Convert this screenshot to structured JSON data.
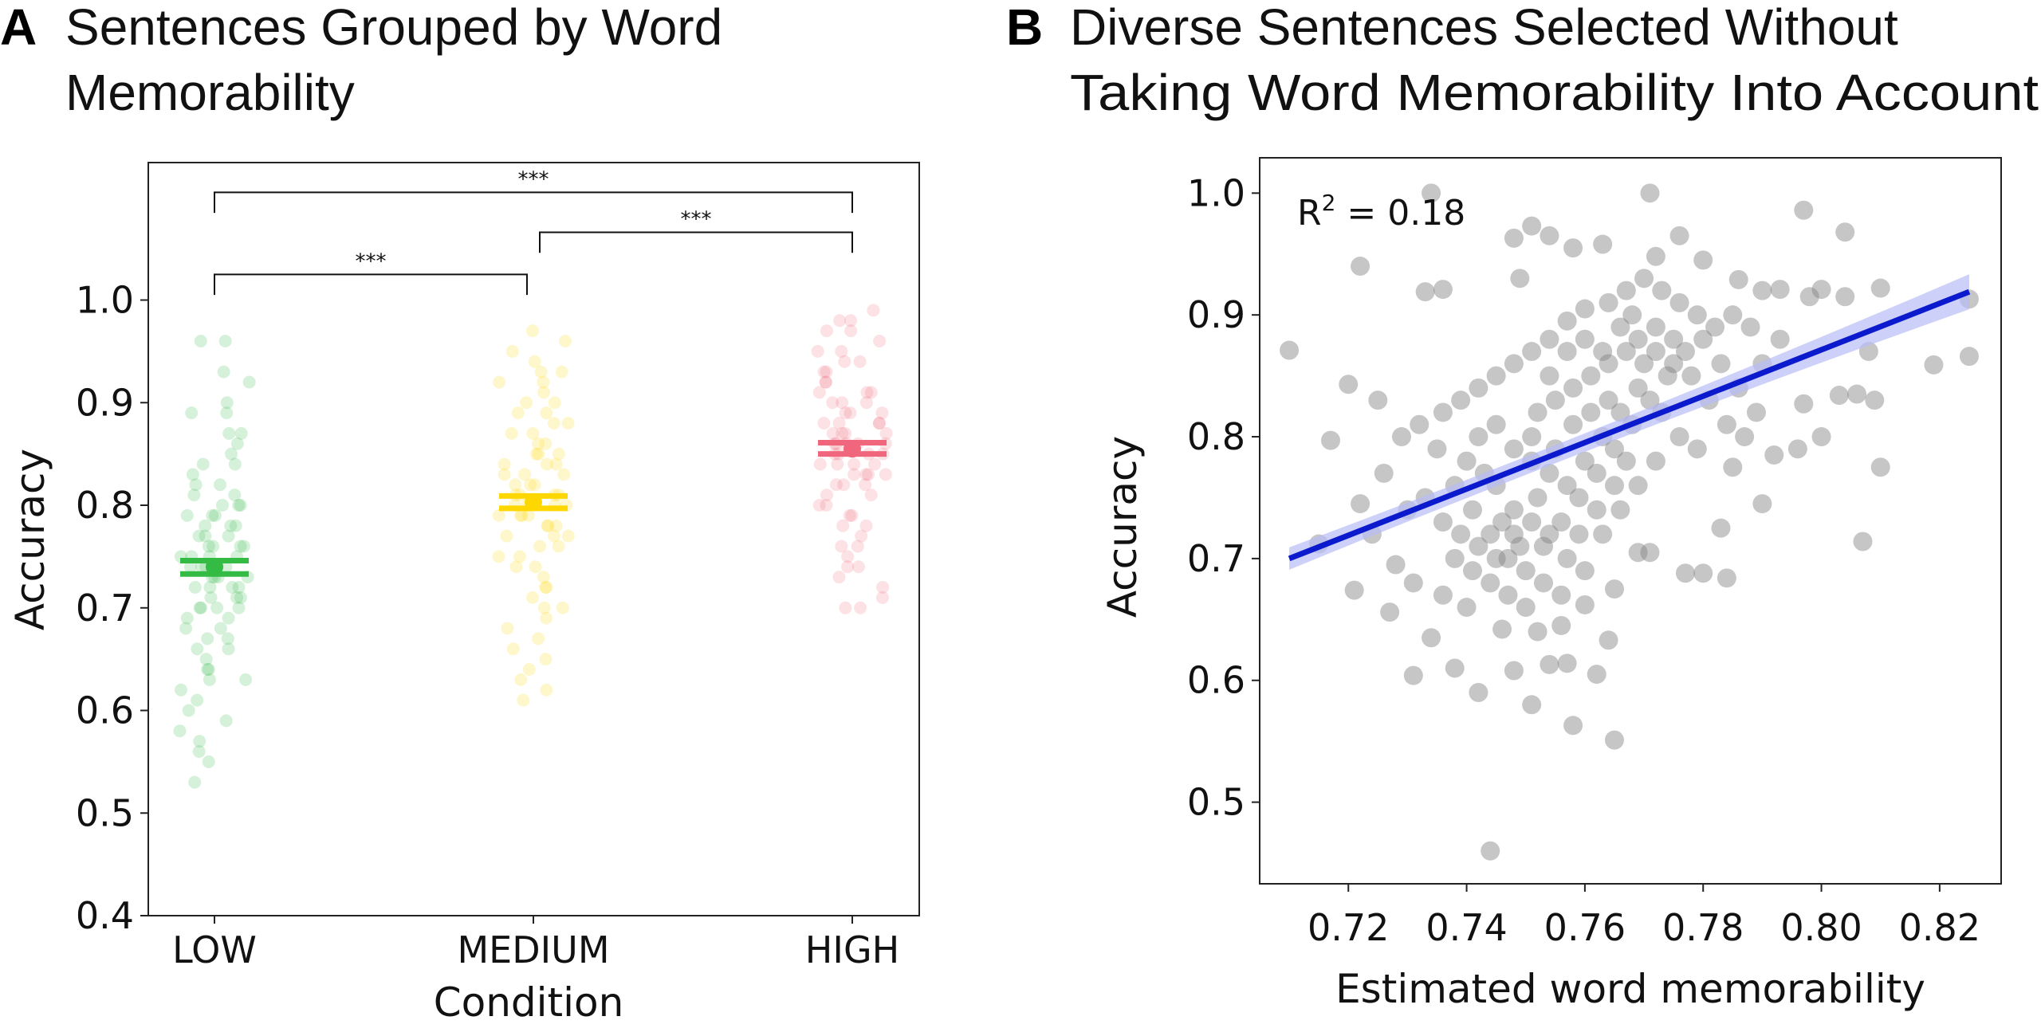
{
  "chart_data": [
    {
      "type": "scatter",
      "subtype": "strip",
      "panel_letter": "A",
      "title": "Sentences Grouped by Word Memorability",
      "title_lines": [
        "Sentences Grouped by Word",
        "Memorability"
      ],
      "xlabel": "Condition",
      "ylabel": "Accuracy",
      "categories": [
        "LOW",
        "MEDIUM",
        "HIGH"
      ],
      "yticks": [
        "0.4",
        "0.5",
        "0.6",
        "0.7",
        "0.8",
        "0.9",
        "1.0"
      ],
      "ylim": [
        0.4,
        1.134
      ],
      "grid": false,
      "colors": {
        "LOW": "#33bb44",
        "MEDIUM": "#ffd700",
        "HIGH": "#f0677d"
      },
      "means": [
        {
          "category": "LOW",
          "mean": 0.74,
          "ci": [
            0.733,
            0.746
          ]
        },
        {
          "category": "MEDIUM",
          "mean": 0.803,
          "ci": [
            0.797,
            0.809
          ]
        },
        {
          "category": "HIGH",
          "mean": 0.855,
          "ci": [
            0.85,
            0.861
          ]
        }
      ],
      "significance": [
        {
          "from": "LOW",
          "to": "MEDIUM",
          "label": "***",
          "y": 1.025
        },
        {
          "from": "MEDIUM",
          "to": "HIGH",
          "label": "***",
          "y": 1.066
        },
        {
          "from": "LOW",
          "to": "HIGH",
          "label": "***",
          "y": 1.105
        }
      ],
      "points": {
        "LOW": [
          0.96,
          0.96,
          0.93,
          0.92,
          0.9,
          0.89,
          0.89,
          0.87,
          0.87,
          0.86,
          0.85,
          0.84,
          0.84,
          0.83,
          0.82,
          0.82,
          0.81,
          0.81,
          0.8,
          0.8,
          0.79,
          0.79,
          0.78,
          0.78,
          0.77,
          0.77,
          0.76,
          0.76,
          0.76,
          0.75,
          0.75,
          0.75,
          0.74,
          0.74,
          0.74,
          0.73,
          0.73,
          0.73,
          0.72,
          0.72,
          0.72,
          0.71,
          0.71,
          0.7,
          0.7,
          0.7,
          0.69,
          0.69,
          0.68,
          0.68,
          0.67,
          0.67,
          0.66,
          0.66,
          0.65,
          0.64,
          0.64,
          0.63,
          0.63,
          0.62,
          0.61,
          0.6,
          0.59,
          0.58,
          0.57,
          0.56,
          0.55,
          0.53,
          0.78,
          0.76,
          0.74,
          0.72,
          0.8,
          0.77,
          0.75,
          0.73,
          0.71,
          0.79,
          0.74,
          0.7
        ],
        "MEDIUM": [
          0.97,
          0.96,
          0.95,
          0.94,
          0.93,
          0.93,
          0.92,
          0.92,
          0.91,
          0.9,
          0.9,
          0.89,
          0.89,
          0.88,
          0.88,
          0.87,
          0.87,
          0.86,
          0.86,
          0.85,
          0.85,
          0.84,
          0.84,
          0.83,
          0.83,
          0.82,
          0.82,
          0.81,
          0.81,
          0.81,
          0.8,
          0.8,
          0.8,
          0.79,
          0.79,
          0.79,
          0.78,
          0.78,
          0.77,
          0.77,
          0.76,
          0.76,
          0.75,
          0.75,
          0.74,
          0.74,
          0.73,
          0.72,
          0.72,
          0.71,
          0.7,
          0.7,
          0.69,
          0.68,
          0.67,
          0.66,
          0.65,
          0.64,
          0.63,
          0.62,
          0.61,
          0.83,
          0.81,
          0.79,
          0.77,
          0.85,
          0.8,
          0.78,
          0.82,
          0.84
        ],
        "HIGH": [
          0.99,
          0.98,
          0.98,
          0.97,
          0.97,
          0.96,
          0.95,
          0.95,
          0.94,
          0.94,
          0.93,
          0.93,
          0.92,
          0.92,
          0.91,
          0.91,
          0.9,
          0.9,
          0.9,
          0.89,
          0.89,
          0.88,
          0.88,
          0.88,
          0.87,
          0.87,
          0.87,
          0.86,
          0.86,
          0.86,
          0.85,
          0.85,
          0.85,
          0.84,
          0.84,
          0.84,
          0.83,
          0.83,
          0.83,
          0.82,
          0.82,
          0.81,
          0.81,
          0.8,
          0.8,
          0.79,
          0.79,
          0.78,
          0.78,
          0.77,
          0.76,
          0.76,
          0.75,
          0.74,
          0.74,
          0.73,
          0.72,
          0.71,
          0.7,
          0.7,
          0.88,
          0.86,
          0.84,
          0.89,
          0.87,
          0.85,
          0.83,
          0.91,
          0.86,
          0.82
        ]
      }
    },
    {
      "type": "scatter",
      "panel_letter": "B",
      "title": "Diverse Sentences Selected Without Taking Word Memorability Into Account",
      "title_lines": [
        "Diverse Sentences Selected Without",
        "Taking Word Memorability Into Account"
      ],
      "xlabel": "Estimated word memorability",
      "ylabel": "Accuracy",
      "xticks": [
        "0.72",
        "0.74",
        "0.76",
        "0.78",
        "0.80",
        "0.82"
      ],
      "yticks": [
        "0.5",
        "0.6",
        "0.7",
        "0.8",
        "0.9",
        "1.0"
      ],
      "xlim": [
        0.705,
        0.8304
      ],
      "ylim": [
        0.433,
        1.029
      ],
      "grid": false,
      "annotation": {
        "prefix": "R",
        "superscript": "2",
        "text": " = 0.18"
      },
      "point_color": "#808080",
      "regression": {
        "color": "#0a1acc",
        "ci_color": "#b8bcf5",
        "x": [
          0.71,
          0.825
        ],
        "y": [
          0.7,
          0.919
        ]
      },
      "points": [
        [
          0.71,
          0.871
        ],
        [
          0.722,
          0.94
        ],
        [
          0.734,
          1.0
        ],
        [
          0.771,
          1.0
        ],
        [
          0.744,
          0.46
        ],
        [
          0.765,
          0.551
        ],
        [
          0.758,
          0.563
        ],
        [
          0.797,
          0.986
        ],
        [
          0.804,
          0.968
        ],
        [
          0.819,
          0.859
        ],
        [
          0.825,
          0.866
        ],
        [
          0.825,
          0.913
        ],
        [
          0.807,
          0.714
        ],
        [
          0.81,
          0.775
        ],
        [
          0.715,
          0.712
        ],
        [
          0.717,
          0.797
        ],
        [
          0.72,
          0.843
        ],
        [
          0.725,
          0.83
        ],
        [
          0.721,
          0.674
        ],
        [
          0.727,
          0.656
        ],
        [
          0.731,
          0.604
        ],
        [
          0.734,
          0.635
        ],
        [
          0.738,
          0.61
        ],
        [
          0.742,
          0.59
        ],
        [
          0.748,
          0.608
        ],
        [
          0.751,
          0.58
        ],
        [
          0.754,
          0.613
        ],
        [
          0.762,
          0.605
        ],
        [
          0.76,
          0.662
        ],
        [
          0.756,
          0.645
        ],
        [
          0.733,
          0.919
        ],
        [
          0.736,
          0.921
        ],
        [
          0.749,
          0.93
        ],
        [
          0.751,
          0.973
        ],
        [
          0.754,
          0.965
        ],
        [
          0.748,
          0.963
        ],
        [
          0.758,
          0.955
        ],
        [
          0.763,
          0.958
        ],
        [
          0.772,
          0.948
        ],
        [
          0.776,
          0.965
        ],
        [
          0.78,
          0.945
        ],
        [
          0.786,
          0.929
        ],
        [
          0.79,
          0.92
        ],
        [
          0.793,
          0.921
        ],
        [
          0.798,
          0.915
        ],
        [
          0.8,
          0.921
        ],
        [
          0.804,
          0.915
        ],
        [
          0.81,
          0.922
        ],
        [
          0.808,
          0.87
        ],
        [
          0.806,
          0.835
        ],
        [
          0.809,
          0.83
        ],
        [
          0.803,
          0.834
        ],
        [
          0.797,
          0.827
        ],
        [
          0.8,
          0.8
        ],
        [
          0.796,
          0.79
        ],
        [
          0.792,
          0.785
        ],
        [
          0.79,
          0.745
        ],
        [
          0.785,
          0.775
        ],
        [
          0.783,
          0.725
        ],
        [
          0.784,
          0.684
        ],
        [
          0.78,
          0.688
        ],
        [
          0.777,
          0.688
        ],
        [
          0.771,
          0.705
        ],
        [
          0.769,
          0.705
        ],
        [
          0.765,
          0.675
        ],
        [
          0.764,
          0.633
        ],
        [
          0.757,
          0.614
        ],
        [
          0.752,
          0.64
        ],
        [
          0.746,
          0.642
        ],
        [
          0.74,
          0.66
        ],
        [
          0.736,
          0.67
        ],
        [
          0.731,
          0.68
        ],
        [
          0.728,
          0.695
        ],
        [
          0.724,
          0.72
        ],
        [
          0.722,
          0.745
        ],
        [
          0.726,
          0.77
        ],
        [
          0.729,
          0.8
        ],
        [
          0.732,
          0.81
        ],
        [
          0.735,
          0.79
        ],
        [
          0.738,
          0.76
        ],
        [
          0.741,
          0.74
        ],
        [
          0.744,
          0.72
        ],
        [
          0.747,
          0.7
        ],
        [
          0.75,
          0.69
        ],
        [
          0.753,
          0.71
        ],
        [
          0.756,
          0.73
        ],
        [
          0.759,
          0.75
        ],
        [
          0.762,
          0.77
        ],
        [
          0.765,
          0.79
        ],
        [
          0.768,
          0.81
        ],
        [
          0.771,
          0.83
        ],
        [
          0.774,
          0.85
        ],
        [
          0.777,
          0.87
        ],
        [
          0.78,
          0.88
        ],
        [
          0.783,
          0.86
        ],
        [
          0.786,
          0.84
        ],
        [
          0.789,
          0.82
        ],
        [
          0.775,
          0.88
        ],
        [
          0.772,
          0.89
        ],
        [
          0.768,
          0.9
        ],
        [
          0.764,
          0.91
        ],
        [
          0.76,
          0.905
        ],
        [
          0.757,
          0.895
        ],
        [
          0.754,
          0.88
        ],
        [
          0.751,
          0.87
        ],
        [
          0.748,
          0.86
        ],
        [
          0.745,
          0.85
        ],
        [
          0.742,
          0.84
        ],
        [
          0.739,
          0.83
        ],
        [
          0.736,
          0.82
        ],
        [
          0.742,
          0.8
        ],
        [
          0.745,
          0.81
        ],
        [
          0.748,
          0.79
        ],
        [
          0.751,
          0.78
        ],
        [
          0.754,
          0.77
        ],
        [
          0.757,
          0.76
        ],
        [
          0.76,
          0.78
        ],
        [
          0.763,
          0.8
        ],
        [
          0.766,
          0.82
        ],
        [
          0.769,
          0.84
        ],
        [
          0.752,
          0.82
        ],
        [
          0.755,
          0.83
        ],
        [
          0.758,
          0.84
        ],
        [
          0.761,
          0.85
        ],
        [
          0.764,
          0.86
        ],
        [
          0.767,
          0.87
        ],
        [
          0.77,
          0.86
        ],
        [
          0.773,
          0.82
        ],
        [
          0.776,
          0.8
        ],
        [
          0.779,
          0.79
        ],
        [
          0.745,
          0.76
        ],
        [
          0.748,
          0.74
        ],
        [
          0.751,
          0.73
        ],
        [
          0.754,
          0.72
        ],
        [
          0.757,
          0.7
        ],
        [
          0.76,
          0.69
        ],
        [
          0.763,
          0.72
        ],
        [
          0.766,
          0.74
        ],
        [
          0.769,
          0.76
        ],
        [
          0.772,
          0.78
        ],
        [
          0.74,
          0.78
        ],
        [
          0.743,
          0.77
        ],
        [
          0.746,
          0.73
        ],
        [
          0.749,
          0.71
        ],
        [
          0.752,
          0.75
        ],
        [
          0.755,
          0.79
        ],
        [
          0.758,
          0.81
        ],
        [
          0.761,
          0.82
        ],
        [
          0.764,
          0.83
        ],
        [
          0.767,
          0.78
        ],
        [
          0.738,
          0.7
        ],
        [
          0.741,
          0.69
        ],
        [
          0.744,
          0.68
        ],
        [
          0.747,
          0.67
        ],
        [
          0.75,
          0.66
        ],
        [
          0.753,
          0.68
        ],
        [
          0.756,
          0.67
        ],
        [
          0.759,
          0.72
        ],
        [
          0.762,
          0.74
        ],
        [
          0.765,
          0.76
        ],
        [
          0.73,
          0.74
        ],
        [
          0.733,
          0.75
        ],
        [
          0.736,
          0.73
        ],
        [
          0.739,
          0.72
        ],
        [
          0.742,
          0.71
        ],
        [
          0.745,
          0.7
        ],
        [
          0.748,
          0.72
        ],
        [
          0.751,
          0.8
        ],
        [
          0.754,
          0.85
        ],
        [
          0.757,
          0.87
        ],
        [
          0.76,
          0.88
        ],
        [
          0.763,
          0.87
        ],
        [
          0.766,
          0.89
        ],
        [
          0.769,
          0.88
        ],
        [
          0.772,
          0.87
        ],
        [
          0.775,
          0.86
        ],
        [
          0.778,
          0.85
        ],
        [
          0.781,
          0.83
        ],
        [
          0.784,
          0.81
        ],
        [
          0.787,
          0.8
        ],
        [
          0.79,
          0.86
        ],
        [
          0.793,
          0.88
        ],
        [
          0.788,
          0.89
        ],
        [
          0.785,
          0.9
        ],
        [
          0.782,
          0.89
        ],
        [
          0.779,
          0.9
        ],
        [
          0.776,
          0.91
        ],
        [
          0.773,
          0.92
        ],
        [
          0.77,
          0.93
        ],
        [
          0.767,
          0.92
        ]
      ]
    }
  ]
}
